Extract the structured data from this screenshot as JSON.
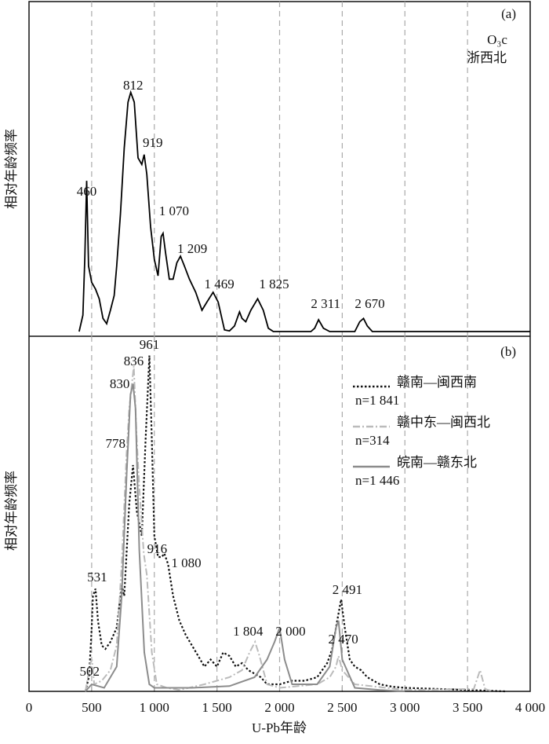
{
  "chart_data": [
    {
      "type": "line",
      "panel_label": "(a)",
      "note": "O₃c",
      "region": "浙西北",
      "ylabel": "相对年龄频率",
      "xlim": [
        0,
        4000
      ],
      "ylim": [
        0,
        100
      ],
      "color": "#000000",
      "x": [
        400,
        430,
        445,
        460,
        475,
        500,
        530,
        560,
        590,
        620,
        650,
        680,
        700,
        730,
        760,
        790,
        812,
        840,
        870,
        900,
        919,
        940,
        970,
        1000,
        1030,
        1055,
        1070,
        1090,
        1120,
        1150,
        1180,
        1209,
        1240,
        1280,
        1330,
        1380,
        1420,
        1469,
        1510,
        1560,
        1600,
        1640,
        1680,
        1700,
        1730,
        1770,
        1825,
        1870,
        1910,
        1950,
        2250,
        2280,
        2311,
        2350,
        2400,
        2600,
        2640,
        2670,
        2700,
        2740,
        4000
      ],
      "values": [
        0,
        5,
        22,
        46,
        20,
        15,
        13,
        10,
        4,
        2.4,
        6.5,
        11,
        20,
        36,
        56,
        70,
        73,
        70,
        53,
        51,
        54,
        48,
        32,
        22,
        17,
        29,
        30,
        24,
        16,
        16,
        21,
        23,
        20,
        16,
        12,
        6.5,
        9,
        12,
        9,
        0.5,
        0.2,
        1.7,
        6,
        4,
        3,
        6.5,
        10,
        6.5,
        1,
        0,
        0,
        1,
        3.6,
        1,
        0,
        0,
        3,
        4,
        1.7,
        0,
        0
      ],
      "annotations": [
        {
          "value": 460,
          "label": "460"
        },
        {
          "value": 812,
          "label": "812"
        },
        {
          "value": 919,
          "label": "919"
        },
        {
          "value": 1070,
          "label": "1 070"
        },
        {
          "value": 1209,
          "label": "1 209"
        },
        {
          "value": 1469,
          "label": "1 469"
        },
        {
          "value": 1825,
          "label": "1 825"
        },
        {
          "value": 2311,
          "label": "2 311"
        },
        {
          "value": 2670,
          "label": "2 670"
        }
      ]
    },
    {
      "type": "line",
      "panel_label": "(b)",
      "ylabel": "相对年龄频率",
      "xlabel": "U-Pb年龄",
      "xlim": [
        0,
        4000
      ],
      "ylim": [
        0,
        100
      ],
      "grid": true,
      "xticks": [
        0,
        500,
        {
          "value": 1000,
          "label": "1 000"
        },
        {
          "value": 1500,
          "label": "1 500"
        },
        {
          "value": 2000,
          "label": "2 000"
        },
        {
          "value": 2500,
          "label": "2 500"
        },
        {
          "value": 3000,
          "label": "3 000"
        },
        {
          "value": 3500,
          "label": "3 500"
        },
        {
          "value": 4000,
          "label": "4 000"
        }
      ],
      "series": [
        {
          "name": "赣南—闽西南",
          "sample_size": {
            "value": 1841,
            "label": "n=1 841"
          },
          "color": "#111111",
          "dash": "dotted",
          "x": [
            450,
            480,
            500,
            510,
            531,
            550,
            580,
            610,
            650,
            700,
            740,
            760,
            780,
            800,
            830,
            860,
            900,
            930,
            961,
            980,
            1000,
            1030,
            1060,
            1080,
            1110,
            1150,
            1200,
            1250,
            1300,
            1350,
            1400,
            1450,
            1500,
            1550,
            1600,
            1650,
            1700,
            1750,
            1800,
            1850,
            1900,
            2000,
            2100,
            2200,
            2300,
            2380,
            2420,
            2460,
            2491,
            2520,
            2560,
            2600,
            2650,
            2700,
            2800,
            2900,
            3000,
            3500,
            3800
          ],
          "values": [
            0,
            4.4,
            18,
            27,
            29,
            20,
            13,
            12,
            14,
            18,
            30,
            27,
            40,
            53,
            64,
            51,
            44,
            71,
            95,
            71,
            44,
            38,
            38,
            39,
            36,
            27,
            20,
            16,
            13,
            10,
            7,
            9,
            7,
            11,
            10,
            7,
            8,
            6,
            5,
            4,
            2,
            2,
            3,
            3,
            4,
            8,
            12,
            20,
            26,
            18,
            9,
            7,
            6,
            4,
            2,
            1.3,
            1,
            0.4,
            0
          ]
        },
        {
          "name": "赣中东—闽西北",
          "sample_size": {
            "value": 314,
            "label": "n=314"
          },
          "color": "#bbbbbb",
          "dash": "dashdot",
          "x": [
            450,
            490,
            502,
            520,
            580,
            650,
            700,
            740,
            778,
            800,
            836,
            860,
            880,
            916,
            940,
            980,
            1020,
            1100,
            1200,
            1400,
            1500,
            1600,
            1700,
            1760,
            1804,
            1840,
            1900,
            2000,
            2300,
            2400,
            2450,
            2470,
            2500,
            2600,
            3000,
            3550,
            3600,
            3640,
            3700
          ],
          "values": [
            0,
            8,
            9,
            2,
            3,
            6,
            13,
            36,
            67,
            80,
            92,
            71,
            58,
            39,
            33,
            11,
            2,
            1,
            0.4,
            2,
            3,
            4,
            6,
            11,
            14,
            10,
            2,
            1,
            2,
            4,
            7,
            10,
            6,
            2,
            0.4,
            0.7,
            6,
            0.7,
            0
          ]
        },
        {
          "name": "皖南—赣东北",
          "sample_size": {
            "value": 1446,
            "label": "n=1 446"
          },
          "color": "#8c8c8c",
          "dash": "solid",
          "x": [
            450,
            500,
            600,
            700,
            740,
            780,
            810,
            830,
            850,
            880,
            920,
            960,
            1000,
            1300,
            1600,
            1800,
            1900,
            1960,
            2000,
            2040,
            2100,
            2300,
            2400,
            2450,
            2470,
            2500,
            2600,
            2800,
            3000
          ],
          "values": [
            0,
            2,
            1,
            7,
            27,
            62,
            84,
            87,
            80,
            40,
            11,
            2,
            1,
            1,
            1.5,
            4,
            9,
            14,
            18,
            9,
            2,
            2,
            7,
            18,
            20,
            9,
            1,
            0.4,
            0
          ]
        }
      ],
      "annotations": [
        {
          "value": 961,
          "label": "961"
        },
        {
          "value": 836,
          "label": "836"
        },
        {
          "value": 830,
          "label": "830"
        },
        {
          "value": 778,
          "label": "778"
        },
        {
          "value": 916,
          "label": "916"
        },
        {
          "value": 1080,
          "label": "1 080"
        },
        {
          "value": 531,
          "label": "531"
        },
        {
          "value": 502,
          "label": "502"
        },
        {
          "value": 1804,
          "label": "1 804"
        },
        {
          "value": 2000,
          "label": "2 000"
        },
        {
          "value": 2491,
          "label": "2 491"
        },
        {
          "value": 2470,
          "label": "2 470"
        }
      ]
    }
  ]
}
